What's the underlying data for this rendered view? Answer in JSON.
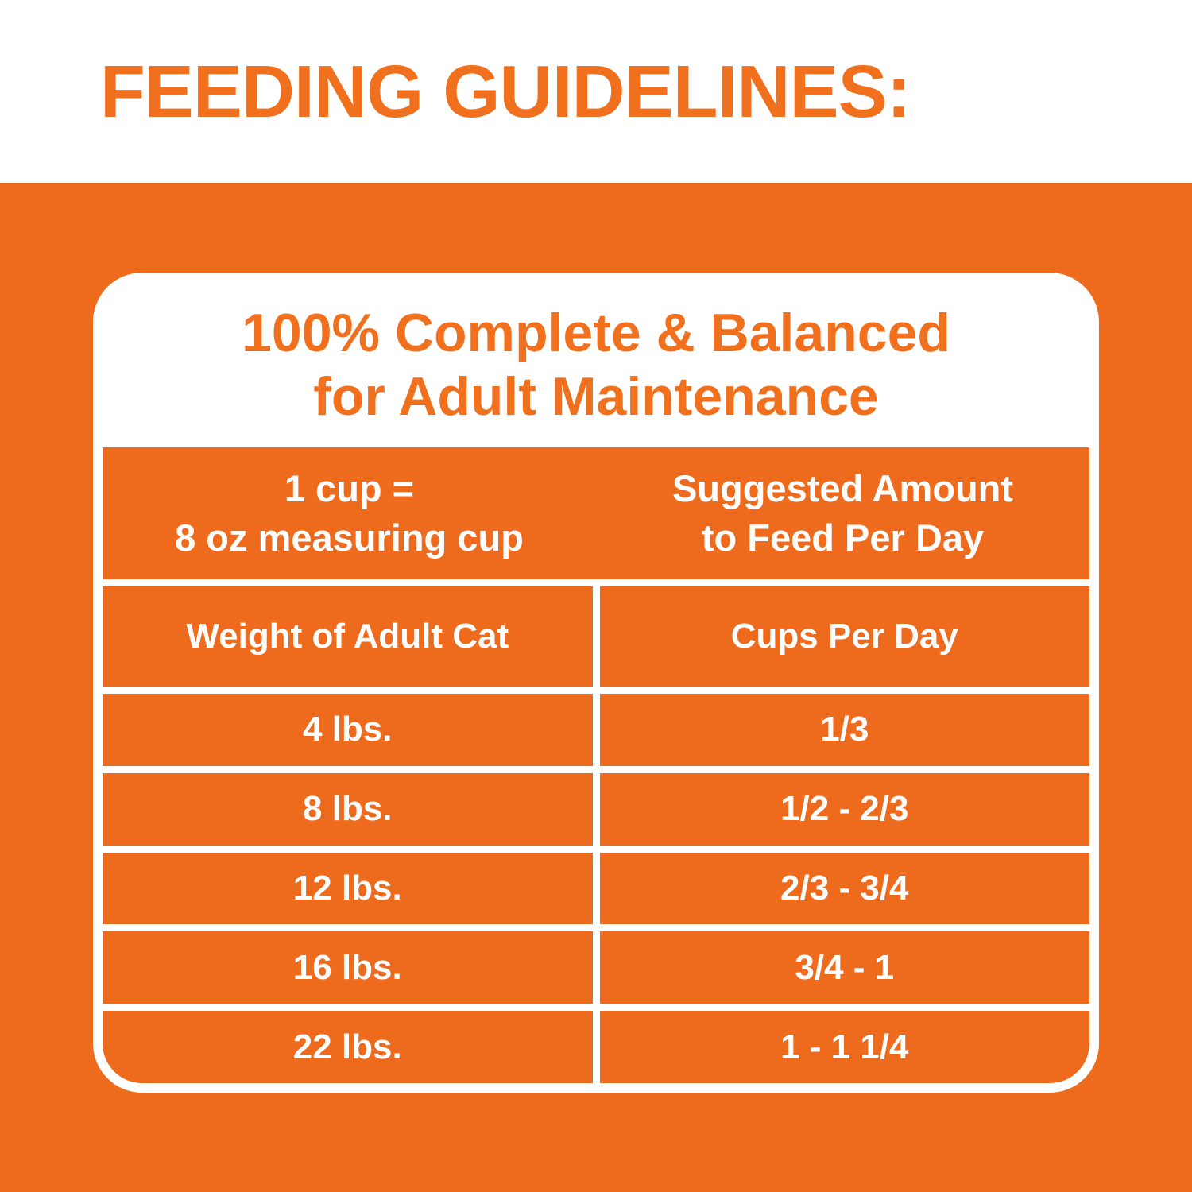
{
  "colors": {
    "brand_orange": "#EE6A1C",
    "heading_orange": "#F0701E",
    "white": "#FFFFFF"
  },
  "header": {
    "title": "FEEDING GUIDELINES:"
  },
  "card": {
    "title_line1": "100% Complete & Balanced",
    "title_line2": "for Adult Maintenance"
  },
  "table": {
    "intro": {
      "left_line1": "1 cup =",
      "left_line2": "8 oz measuring cup",
      "right_line1": "Suggested Amount",
      "right_line2": "to Feed Per Day"
    },
    "columns": {
      "weight": "Weight of Adult Cat",
      "cups": "Cups Per Day"
    },
    "rows": [
      {
        "weight": "4 lbs.",
        "cups": "1/3"
      },
      {
        "weight": "8 lbs.",
        "cups": "1/2 - 2/3"
      },
      {
        "weight": "12 lbs.",
        "cups": "2/3 - 3/4"
      },
      {
        "weight": "16 lbs.",
        "cups": "3/4 - 1"
      },
      {
        "weight": "22 lbs.",
        "cups": "1 - 1 1/4"
      }
    ]
  },
  "chart_data": {
    "type": "table",
    "title": "100% Complete & Balanced for Adult Maintenance",
    "note_left": "1 cup = 8 oz measuring cup",
    "note_right": "Suggested Amount to Feed Per Day",
    "columns": [
      "Weight of Adult Cat",
      "Cups Per Day"
    ],
    "rows": [
      [
        "4 lbs.",
        "1/3"
      ],
      [
        "8 lbs.",
        "1/2 - 2/3"
      ],
      [
        "12 lbs.",
        "2/3 - 3/4"
      ],
      [
        "16 lbs.",
        "3/4 - 1"
      ],
      [
        "22 lbs.",
        "1 - 1 1/4"
      ]
    ]
  }
}
